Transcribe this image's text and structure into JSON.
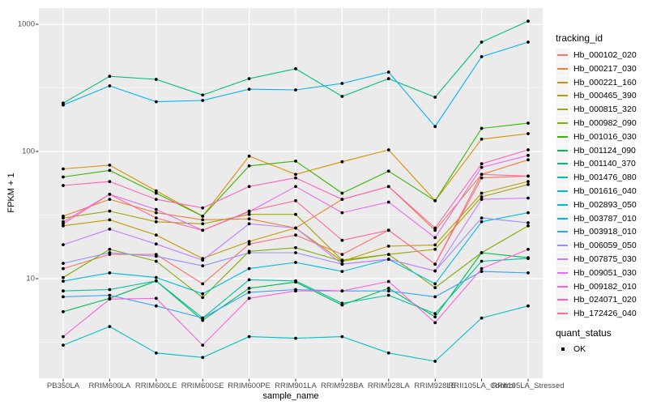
{
  "chart_data": {
    "type": "line",
    "title": "",
    "xlabel": "sample_name",
    "ylabel": "FPKM + 1",
    "y_scale": "log10",
    "y_ticks": [
      10,
      100,
      1000
    ],
    "y_minor_ticks": [
      3.1623,
      31.623,
      316.23
    ],
    "ylim": [
      1.7,
      1340
    ],
    "grid": true,
    "panel_bg": "#EBEBEB",
    "grid_color": "#FFFFFF",
    "tick_color": "#333333",
    "point_color": "#000000",
    "categories": [
      "PB350LA",
      "RRIM600LA",
      "RRIM600LE",
      "RRIM600SE",
      "RRIM600PE",
      "RRIM901LA",
      "RRIM928BA",
      "RRIM928LA",
      "RRIM928LE",
      "RRII105LA_Control",
      "RRII105LA_Stressed"
    ],
    "legend": {
      "title": "tracking_id",
      "position": "right"
    },
    "quant_legend": {
      "title": "quant_status",
      "items": [
        {
          "label": "OK"
        }
      ]
    },
    "series": [
      {
        "name": "Hb_000102_020",
        "color": "#F8766D",
        "values": [
          12,
          15.5,
          15.5,
          9.1,
          18.7,
          22,
          15.5,
          24,
          13,
          62,
          64
        ]
      },
      {
        "name": "Hb_000217_030",
        "color": "#EA8331",
        "values": [
          31,
          42,
          33,
          29,
          29.5,
          25,
          42,
          53,
          24,
          66,
          86
        ]
      },
      {
        "name": "Hb_000221_160",
        "color": "#D89000",
        "values": [
          73,
          78,
          49,
          31,
          92,
          66,
          83,
          103,
          41,
          125,
          138
        ]
      },
      {
        "name": "Hb_000465_390",
        "color": "#C09B00",
        "values": [
          26,
          29,
          22,
          14.4,
          19.6,
          25,
          13.7,
          18,
          18.4,
          47,
          58
        ]
      },
      {
        "name": "Hb_000815_320",
        "color": "#A3A500",
        "values": [
          30,
          34,
          28,
          27,
          32,
          32,
          14,
          15.5,
          17,
          44,
          55
        ]
      },
      {
        "name": "Hb_000982_090",
        "color": "#7CAE00",
        "values": [
          10.2,
          17,
          13.7,
          7.1,
          16.4,
          17.5,
          13.7,
          15.5,
          8.5,
          16,
          26
        ]
      },
      {
        "name": "Hb_001016_030",
        "color": "#39B600",
        "values": [
          63,
          71,
          47,
          31,
          77,
          84,
          47,
          70,
          41,
          152,
          167
        ]
      },
      {
        "name": "Hb_001124_090",
        "color": "#00BB4E",
        "values": [
          5.5,
          7,
          9.6,
          4.7,
          8.4,
          9.4,
          6.2,
          8.4,
          5,
          16,
          14.6
        ]
      },
      {
        "name": "Hb_001140_370",
        "color": "#00BF7D",
        "values": [
          240,
          390,
          369,
          278,
          374,
          447,
          271,
          374,
          267,
          724,
          1059
        ]
      },
      {
        "name": "Hb_001476_080",
        "color": "#00C1A3",
        "values": [
          8,
          8.2,
          9.6,
          4.9,
          9.8,
          9.6,
          6.4,
          7.4,
          5.3,
          13.7,
          14.4
        ]
      },
      {
        "name": "Hb_001616_040",
        "color": "#00BFC4",
        "values": [
          3,
          4.2,
          2.6,
          2.4,
          3.5,
          3.4,
          3.5,
          2.6,
          2.24,
          4.9,
          6.1
        ]
      },
      {
        "name": "Hb_002893_050",
        "color": "#00BAE0",
        "values": [
          9.55,
          11.1,
          10.2,
          7.6,
          12,
          13.4,
          11.4,
          14.2,
          9.1,
          28,
          33
        ]
      },
      {
        "name": "Hb_003787_010",
        "color": "#00B0F6",
        "values": [
          232,
          328,
          246,
          252,
          309,
          305,
          343,
          421,
          157,
          556,
          724
        ]
      },
      {
        "name": "Hb_003918_010",
        "color": "#35A2FF",
        "values": [
          7.2,
          7.4,
          6.1,
          4.9,
          7.8,
          8.2,
          8,
          8,
          7.2,
          11.4,
          11.1
        ]
      },
      {
        "name": "Hb_006059_050",
        "color": "#9590FF",
        "values": [
          13.2,
          16,
          15,
          12.6,
          16,
          16,
          13,
          14.2,
          11.5,
          30,
          27.5
        ]
      },
      {
        "name": "Hb_007875_030",
        "color": "#C77CFF",
        "values": [
          18.5,
          24.5,
          18.7,
          14,
          27,
          25,
          13,
          14.2,
          11.5,
          42,
          43
        ]
      },
      {
        "name": "Hb_009051_030",
        "color": "#E76BF3",
        "values": [
          28,
          46,
          35,
          24,
          33.6,
          53,
          33,
          40,
          21,
          75,
          93
        ]
      },
      {
        "name": "Hb_009182_010",
        "color": "#FA62DB",
        "values": [
          3.5,
          6.9,
          7,
          3,
          7,
          8,
          8,
          9.5,
          4.5,
          12,
          17
        ]
      },
      {
        "name": "Hb_024071_020",
        "color": "#FF62BC",
        "values": [
          54,
          58,
          42,
          36,
          53,
          62,
          42,
          53,
          25,
          80,
          103
        ]
      },
      {
        "name": "Hb_172426_040",
        "color": "#FF6A98",
        "values": [
          27,
          46,
          30,
          24,
          34,
          41,
          20,
          24,
          13,
          66,
          64
        ]
      }
    ]
  }
}
